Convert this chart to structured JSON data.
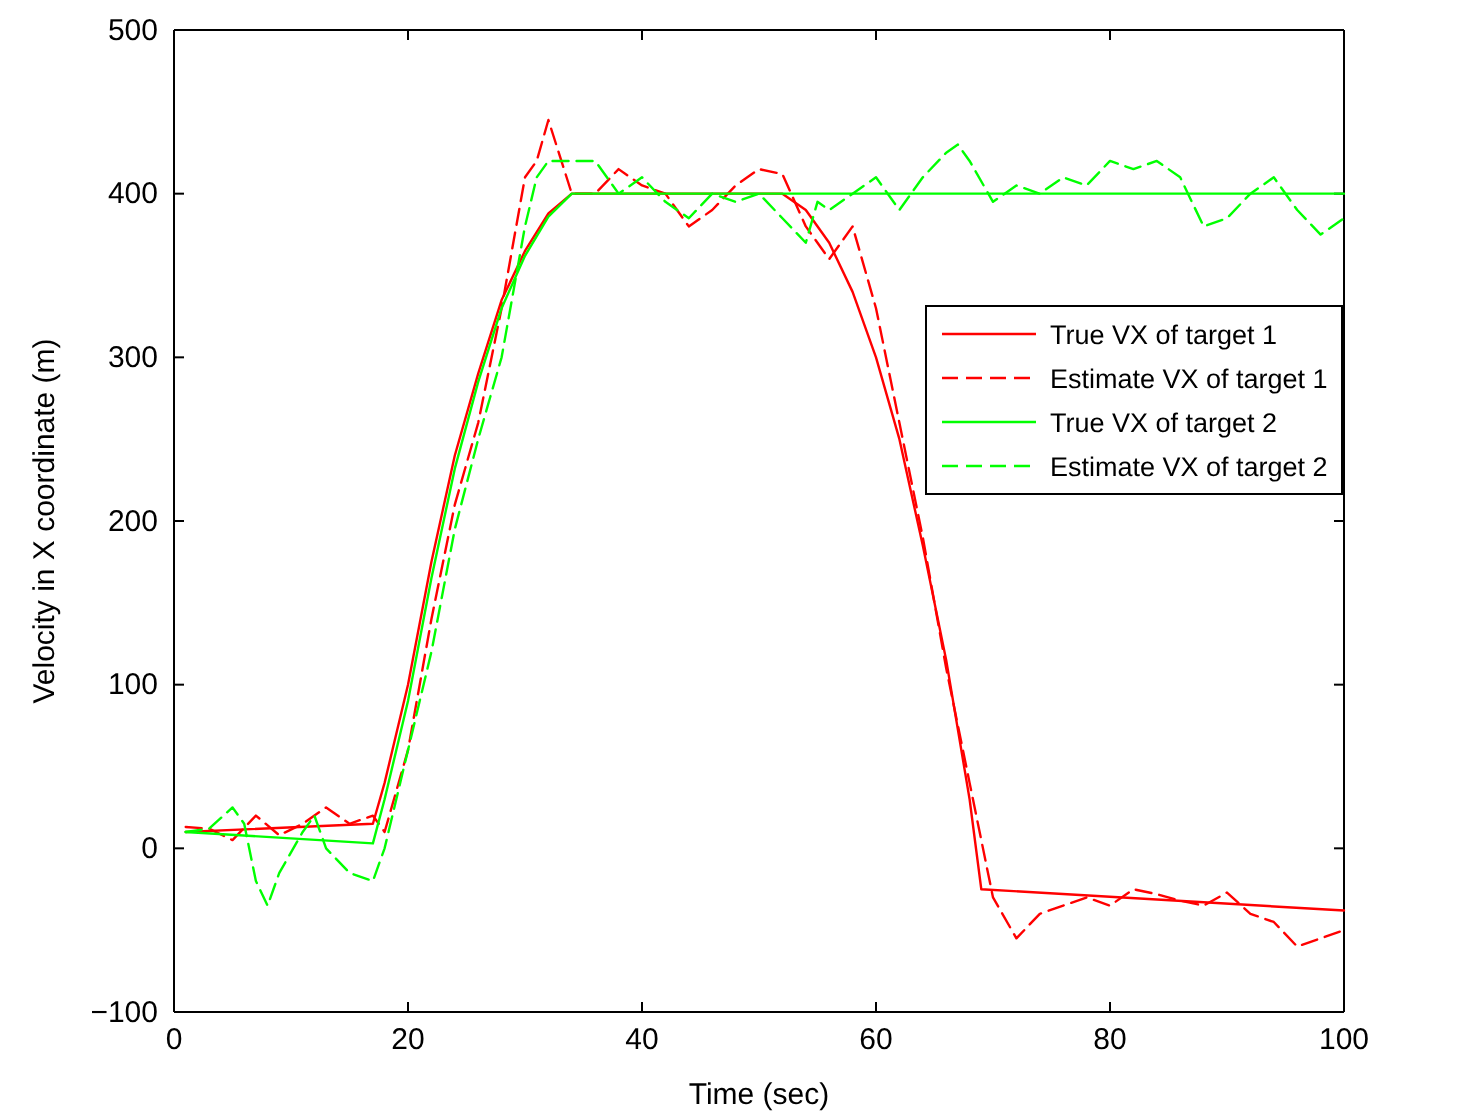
{
  "chart_data": {
    "type": "line",
    "xlabel": "Time (sec)",
    "ylabel": "Velocity in X coordinate (m)",
    "xlim": [
      0,
      100
    ],
    "ylim": [
      -100,
      500
    ],
    "xticks": [
      0,
      20,
      40,
      60,
      80,
      100
    ],
    "yticks": [
      -100,
      0,
      100,
      200,
      300,
      400,
      500
    ],
    "grid": false,
    "legend": "right",
    "marker": "none",
    "series": [
      {
        "name": "True VX of target 1",
        "color": "#ff0000",
        "line_style": "solid",
        "x": [
          1,
          17,
          18,
          20,
          22,
          24,
          26,
          28,
          30,
          32,
          34,
          52,
          54,
          56,
          58,
          60,
          62,
          64,
          66,
          68,
          69,
          100
        ],
        "values": [
          10,
          15,
          40,
          100,
          175,
          240,
          290,
          335,
          365,
          388,
          400,
          400,
          390,
          370,
          340,
          300,
          250,
          185,
          115,
          30,
          -25,
          -38
        ]
      },
      {
        "name": "Estimate VX of target 1",
        "color": "#ff0000",
        "line_style": "dashed",
        "x": [
          1,
          3,
          5,
          7,
          9,
          11,
          13,
          15,
          17,
          18,
          20,
          22,
          24,
          26,
          28,
          30,
          31,
          32,
          34,
          36,
          38,
          40,
          42,
          44,
          46,
          48,
          50,
          52,
          54,
          56,
          58,
          60,
          62,
          64,
          66,
          68,
          70,
          72,
          74,
          76,
          78,
          80,
          82,
          84,
          86,
          88,
          90,
          92,
          94,
          96,
          98,
          100
        ],
        "values": [
          13,
          12,
          5,
          20,
          8,
          15,
          25,
          15,
          20,
          10,
          60,
          140,
          210,
          260,
          330,
          410,
          420,
          445,
          400,
          400,
          415,
          405,
          400,
          380,
          390,
          405,
          415,
          412,
          380,
          360,
          380,
          330,
          260,
          190,
          110,
          40,
          -30,
          -55,
          -40,
          -35,
          -30,
          -35,
          -25,
          -28,
          -32,
          -35,
          -27,
          -40,
          -45,
          -60,
          -55,
          -50
        ]
      },
      {
        "name": "True VX of target 2",
        "color": "#00ff00",
        "line_style": "solid",
        "x": [
          1,
          17,
          18,
          20,
          22,
          24,
          26,
          28,
          30,
          32,
          34,
          100
        ],
        "values": [
          10,
          3,
          30,
          90,
          165,
          232,
          285,
          330,
          362,
          386,
          400,
          400
        ]
      },
      {
        "name": "Estimate VX of target 2",
        "color": "#00ff00",
        "line_style": "dashed",
        "x": [
          1,
          3,
          5,
          6,
          7,
          8,
          9,
          11,
          12,
          13,
          15,
          17,
          18,
          20,
          22,
          24,
          26,
          28,
          30,
          31,
          32,
          34,
          36,
          38,
          40,
          42,
          44,
          46,
          48,
          50,
          52,
          54,
          55,
          56,
          58,
          60,
          62,
          64,
          66,
          67,
          68,
          70,
          72,
          74,
          76,
          78,
          80,
          82,
          84,
          86,
          88,
          90,
          92,
          94,
          96,
          98,
          100
        ],
        "values": [
          10,
          12,
          25,
          15,
          -20,
          -35,
          -15,
          10,
          20,
          0,
          -15,
          -20,
          0,
          60,
          120,
          195,
          250,
          300,
          380,
          410,
          420,
          420,
          420,
          400,
          410,
          395,
          385,
          400,
          395,
          400,
          385,
          370,
          395,
          390,
          400,
          410,
          390,
          410,
          425,
          430,
          420,
          395,
          405,
          400,
          410,
          405,
          420,
          415,
          420,
          410,
          380,
          385,
          400,
          410,
          390,
          375,
          385
        ]
      }
    ]
  }
}
